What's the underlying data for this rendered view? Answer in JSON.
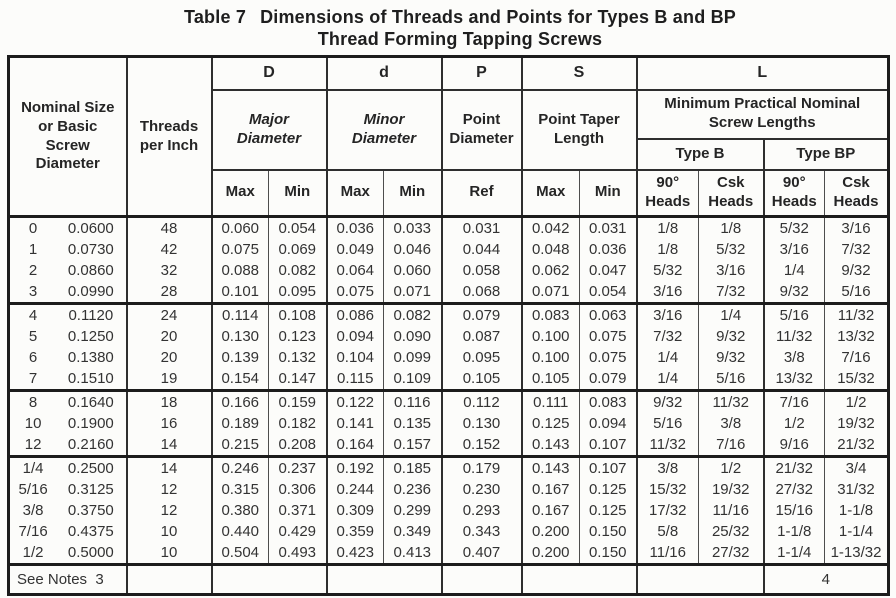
{
  "title": {
    "prefix": "Table 7",
    "line1": "Dimensions of Threads and Points for Types B and BP",
    "line2": "Thread Forming Tapping Screws"
  },
  "header": {
    "nominal": "Nominal Size\nor Basic\nScrew\nDiameter",
    "threads": "Threads\nper Inch",
    "major_letter": "D",
    "major_name": "Major\nDiameter",
    "minor_letter": "d",
    "minor_name": "Minor\nDiameter",
    "point_letter": "P",
    "point_name": "Point\nDiameter",
    "taper_letter": "S",
    "taper_name": "Point Taper\nLength",
    "length_letter": "L",
    "length_name": "Minimum Practical Nominal\nScrew Lengths",
    "type_b": "Type B",
    "type_bp": "Type BP",
    "max": "Max",
    "min": "Min",
    "ref": "Ref",
    "heads_90": "90°\nHeads",
    "heads_csk": "Csk\nHeads"
  },
  "rows": [
    [
      [
        "0",
        "0.0600",
        "48",
        "0.060",
        "0.054",
        "0.036",
        "0.033",
        "0.031",
        "0.042",
        "0.031",
        "1/8",
        "1/8",
        "5/32",
        "3/16"
      ],
      [
        "1",
        "0.0730",
        "42",
        "0.075",
        "0.069",
        "0.049",
        "0.046",
        "0.044",
        "0.048",
        "0.036",
        "1/8",
        "5/32",
        "3/16",
        "7/32"
      ],
      [
        "2",
        "0.0860",
        "32",
        "0.088",
        "0.082",
        "0.064",
        "0.060",
        "0.058",
        "0.062",
        "0.047",
        "5/32",
        "3/16",
        "1/4",
        "9/32"
      ],
      [
        "3",
        "0.0990",
        "28",
        "0.101",
        "0.095",
        "0.075",
        "0.071",
        "0.068",
        "0.071",
        "0.054",
        "3/16",
        "7/32",
        "9/32",
        "5/16"
      ]
    ],
    [
      [
        "4",
        "0.1120",
        "24",
        "0.114",
        "0.108",
        "0.086",
        "0.082",
        "0.079",
        "0.083",
        "0.063",
        "3/16",
        "1/4",
        "5/16",
        "11/32"
      ],
      [
        "5",
        "0.1250",
        "20",
        "0.130",
        "0.123",
        "0.094",
        "0.090",
        "0.087",
        "0.100",
        "0.075",
        "7/32",
        "9/32",
        "11/32",
        "13/32"
      ],
      [
        "6",
        "0.1380",
        "20",
        "0.139",
        "0.132",
        "0.104",
        "0.099",
        "0.095",
        "0.100",
        "0.075",
        "1/4",
        "9/32",
        "3/8",
        "7/16"
      ],
      [
        "7",
        "0.1510",
        "19",
        "0.154",
        "0.147",
        "0.115",
        "0.109",
        "0.105",
        "0.105",
        "0.079",
        "1/4",
        "5/16",
        "13/32",
        "15/32"
      ]
    ],
    [
      [
        "8",
        "0.1640",
        "18",
        "0.166",
        "0.159",
        "0.122",
        "0.116",
        "0.112",
        "0.111",
        "0.083",
        "9/32",
        "11/32",
        "7/16",
        "1/2"
      ],
      [
        "10",
        "0.1900",
        "16",
        "0.189",
        "0.182",
        "0.141",
        "0.135",
        "0.130",
        "0.125",
        "0.094",
        "5/16",
        "3/8",
        "1/2",
        "19/32"
      ],
      [
        "12",
        "0.2160",
        "14",
        "0.215",
        "0.208",
        "0.164",
        "0.157",
        "0.152",
        "0.143",
        "0.107",
        "11/32",
        "7/16",
        "9/16",
        "21/32"
      ]
    ],
    [
      [
        "1/4",
        "0.2500",
        "14",
        "0.246",
        "0.237",
        "0.192",
        "0.185",
        "0.179",
        "0.143",
        "0.107",
        "3/8",
        "1/2",
        "21/32",
        "3/4"
      ],
      [
        "5/16",
        "0.3125",
        "12",
        "0.315",
        "0.306",
        "0.244",
        "0.236",
        "0.230",
        "0.167",
        "0.125",
        "15/32",
        "19/32",
        "27/32",
        "31/32"
      ],
      [
        "3/8",
        "0.3750",
        "12",
        "0.380",
        "0.371",
        "0.309",
        "0.299",
        "0.293",
        "0.167",
        "0.125",
        "17/32",
        "11/16",
        "15/16",
        "1-1/8"
      ],
      [
        "7/16",
        "0.4375",
        "10",
        "0.440",
        "0.429",
        "0.359",
        "0.349",
        "0.343",
        "0.200",
        "0.150",
        "5/8",
        "25/32",
        "1-1/8",
        "1-1/4"
      ],
      [
        "1/2",
        "0.5000",
        "10",
        "0.504",
        "0.493",
        "0.423",
        "0.413",
        "0.407",
        "0.200",
        "0.150",
        "11/16",
        "27/32",
        "1-1/4",
        "1-13/32"
      ]
    ]
  ],
  "footer": {
    "notes": "See Notes  3",
    "page": "4"
  }
}
